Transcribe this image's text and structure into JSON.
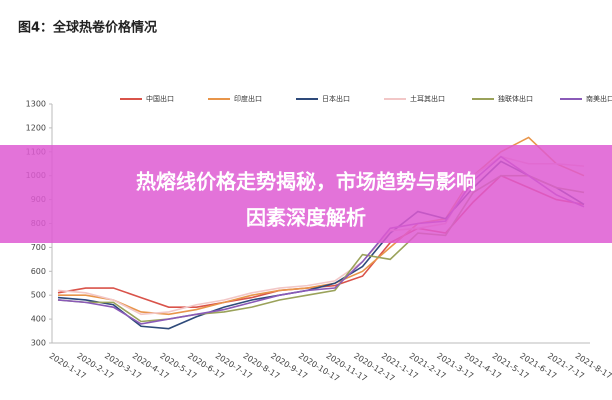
{
  "chart_data": {
    "type": "line",
    "title": "图4：全球热卷价格情况",
    "categories": [
      "2020-1-17",
      "2020-2-17",
      "2020-3-17",
      "2020-4-17",
      "2020-5-17",
      "2020-6-17",
      "2020-7-17",
      "2020-8-17",
      "2020-9-17",
      "2020-10-17",
      "2020-11-17",
      "2020-12-17",
      "2021-1-17",
      "2021-2-17",
      "2021-3-17",
      "2021-4-17",
      "2021-5-17",
      "2021-6-17",
      "2021-7-17",
      "2021-8-17"
    ],
    "series": [
      {
        "name": "中国出口",
        "color": "#d9534a",
        "values": [
          510,
          530,
          530,
          490,
          450,
          450,
          470,
          490,
          520,
          530,
          540,
          580,
          720,
          780,
          760,
          890,
          1000,
          950,
          900,
          880
        ]
      },
      {
        "name": "印度出口",
        "color": "#e8954a",
        "values": [
          500,
          500,
          480,
          430,
          420,
          440,
          470,
          500,
          520,
          530,
          550,
          600,
          700,
          800,
          820,
          1000,
          1100,
          1160,
          1050,
          1000
        ]
      },
      {
        "name": "日本出口",
        "color": "#2e4a7a",
        "values": [
          490,
          480,
          460,
          370,
          360,
          410,
          450,
          480,
          500,
          520,
          550,
          620,
          760,
          850,
          820,
          950,
          1060,
          1000,
          950,
          880
        ]
      },
      {
        "name": "土耳其出口",
        "color": "#f2c7c7",
        "values": [
          520,
          510,
          480,
          420,
          430,
          460,
          480,
          510,
          530,
          540,
          560,
          640,
          770,
          780,
          800,
          1000,
          1080,
          1050,
          1050,
          1040
        ]
      },
      {
        "name": "独联体出口",
        "color": "#9aa25a",
        "values": [
          480,
          470,
          470,
          390,
          400,
          420,
          430,
          450,
          480,
          500,
          520,
          670,
          650,
          760,
          750,
          930,
          1000,
          1000,
          950,
          930
        ]
      },
      {
        "name": "南美出口",
        "color": "#8a5ab8",
        "values": [
          480,
          470,
          450,
          380,
          400,
          420,
          440,
          470,
          500,
          520,
          530,
          640,
          780,
          800,
          810,
          980,
          1080,
          1000,
          920,
          870
        ]
      }
    ],
    "ylim": [
      300,
      1300
    ],
    "yticks": [
      300,
      400,
      500,
      600,
      700,
      800,
      900,
      1000,
      1100,
      1200,
      1300
    ],
    "grid": false
  },
  "banner": [
    "热熔线价格走势揭秘，市场趋势与影响",
    "因素深度解析"
  ]
}
